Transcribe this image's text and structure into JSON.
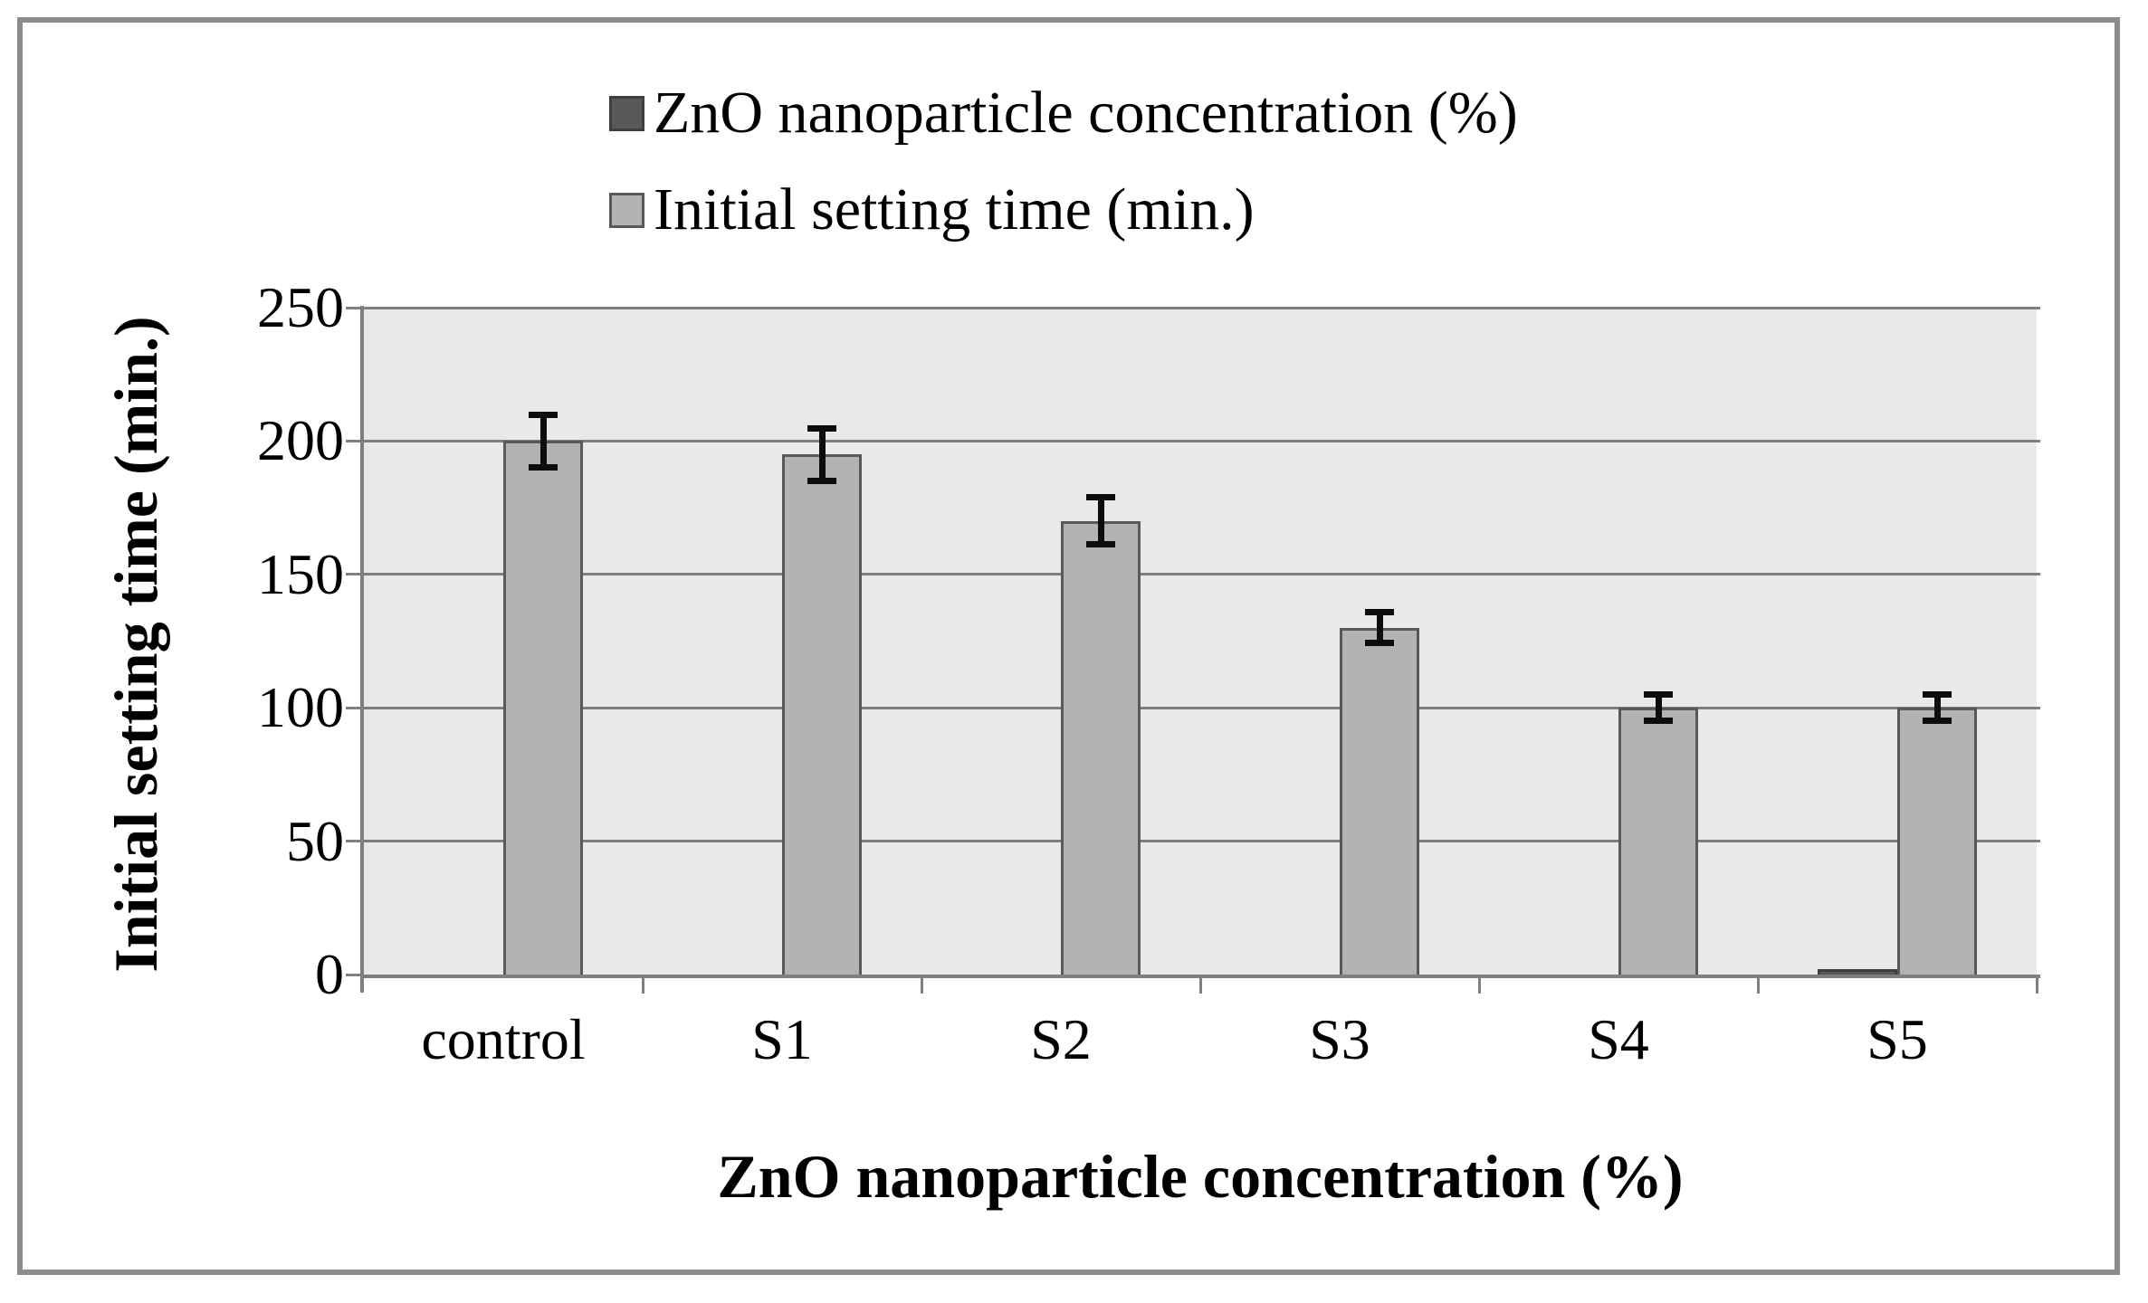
{
  "chart_data": {
    "type": "bar",
    "title": "",
    "categories": [
      "control",
      "S1",
      "S2",
      "S3",
      "S4",
      "S5"
    ],
    "series": [
      {
        "name": "ZnO nanoparticle concentration (%)",
        "color": "#595959",
        "border_color": "#3F3F3F",
        "values": [
          0,
          0,
          0,
          0,
          0,
          2
        ]
      },
      {
        "name": "Initial setting time (min.)",
        "color": "#B3B3B3",
        "border_color": "#595959",
        "values": [
          200,
          195,
          170,
          130,
          100,
          100
        ],
        "errors": [
          10,
          10,
          9,
          6,
          5,
          5
        ]
      }
    ],
    "xlabel": "ZnO nanoparticle concentration (%)",
    "ylabel": "Initial setting time (min.)",
    "ylim": [
      0,
      250
    ],
    "yticks": [
      "0",
      "50",
      "100",
      "150",
      "200",
      "250"
    ],
    "ytick_values": [
      0,
      50,
      100,
      150,
      200,
      250
    ],
    "grid": true,
    "legend_position": "top",
    "plot_bg": "#E9E9E9",
    "gridline_color": "#7F7F7F",
    "axis_color": "#7F7F7F",
    "error_bar_color": "#0D0D0D",
    "frame_color": "#8C8C8C"
  }
}
